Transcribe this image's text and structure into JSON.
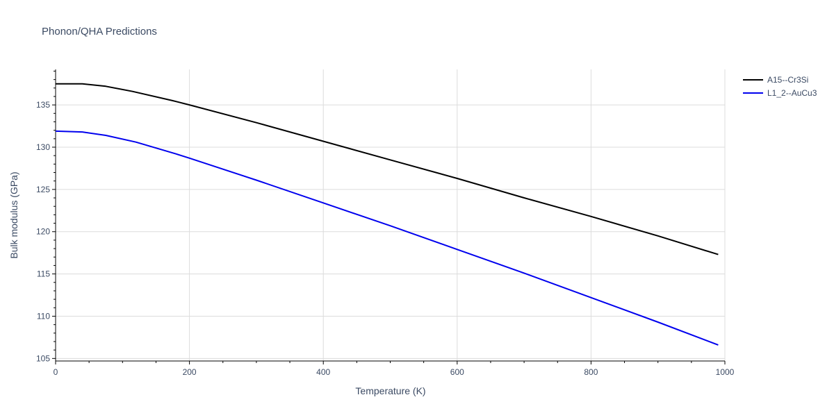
{
  "chart_data": {
    "type": "line",
    "title": "Phonon/QHA Predictions",
    "xlabel": "Temperature (K)",
    "ylabel": "Bulk modulus (GPa)",
    "xlim": [
      0,
      1000
    ],
    "ylim": [
      104.7,
      139.2
    ],
    "xticks": [
      0,
      200,
      400,
      600,
      800,
      1000
    ],
    "yticks": [
      105,
      110,
      115,
      120,
      125,
      130,
      135
    ],
    "grid": true,
    "legend_position": "top-right",
    "series": [
      {
        "name": "A15--Cr3Si",
        "color": "#000000",
        "x": [
          0,
          40,
          75,
          115,
          175,
          200,
          300,
          400,
          500,
          600,
          700,
          800,
          900,
          990
        ],
        "y": [
          137.5,
          137.5,
          137.2,
          136.6,
          135.5,
          135.0,
          132.9,
          130.7,
          128.5,
          126.3,
          124.0,
          121.8,
          119.5,
          117.3
        ]
      },
      {
        "name": "L1_2--AuCu3",
        "color": "#0000ee",
        "x": [
          0,
          40,
          75,
          120,
          180,
          200,
          300,
          400,
          500,
          600,
          700,
          800,
          900,
          990
        ],
        "y": [
          131.9,
          131.8,
          131.4,
          130.6,
          129.2,
          128.7,
          126.1,
          123.4,
          120.7,
          117.9,
          115.1,
          112.2,
          109.3,
          106.6
        ]
      }
    ]
  }
}
